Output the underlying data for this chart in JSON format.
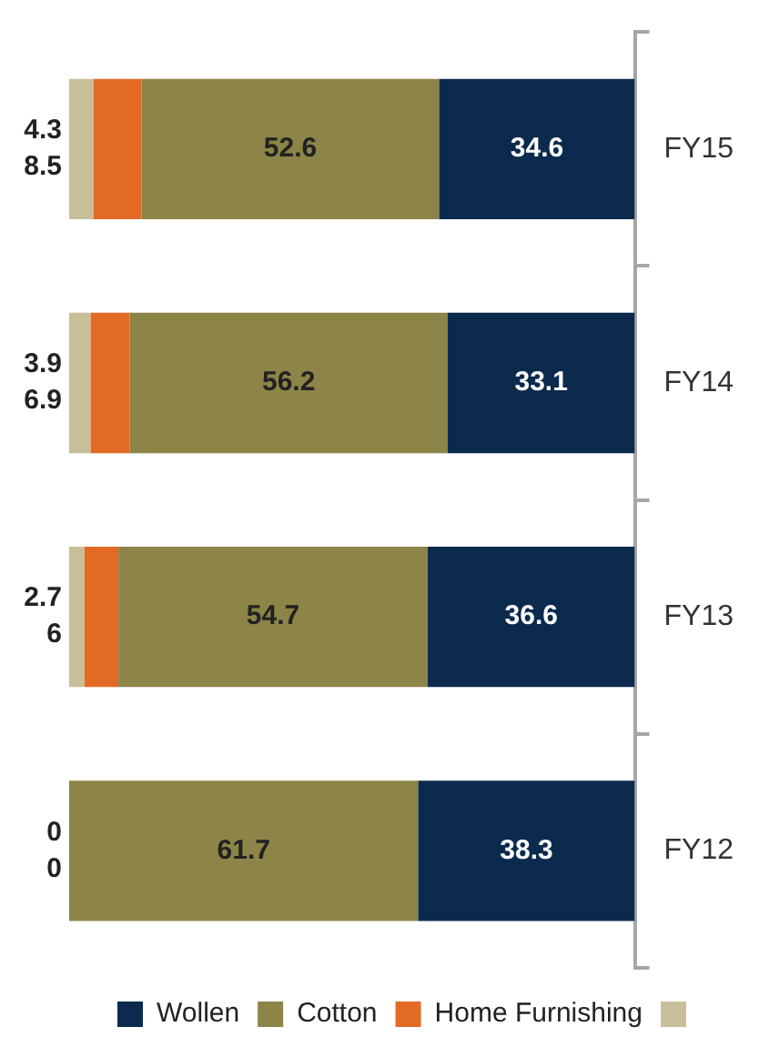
{
  "chart_data": {
    "type": "bar",
    "stacked": true,
    "orientation": "horizontal",
    "categories": [
      "FY15",
      "FY14",
      "FY13",
      "FY12"
    ],
    "series": [
      {
        "name": "Wollen",
        "color": "#0b2a4e",
        "values": [
          34.6,
          33.1,
          36.6,
          38.3
        ]
      },
      {
        "name": "Cotton",
        "color": "#8d8447",
        "values": [
          52.6,
          56.2,
          54.7,
          61.7
        ]
      },
      {
        "name": "Home Furnishing",
        "color": "#e26a25",
        "values": [
          8.5,
          6.9,
          6,
          0
        ]
      },
      {
        "color": "#c8bf9a",
        "values": [
          4.3,
          3.9,
          2.7,
          0
        ]
      }
    ],
    "xlim": [
      100,
      0
    ],
    "data_labels": true,
    "legend": "bottom",
    "grid": false
  }
}
